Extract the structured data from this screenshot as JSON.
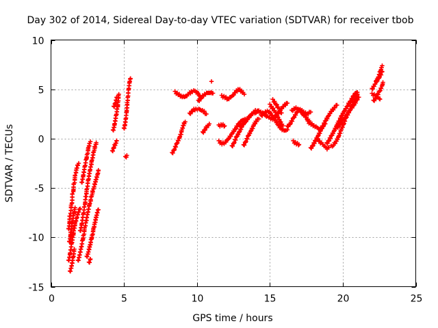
{
  "chart_data": {
    "type": "scatter",
    "title": "Day 302 of 2014, Sidereal Day-to-day VTEC variation (SDTVAR) for receiver tbob",
    "xlabel": "GPS time / hours",
    "ylabel": "SDTVAR / TECUs",
    "xlim": [
      0,
      25
    ],
    "ylim": [
      -15,
      10
    ],
    "xticks": [
      0,
      5,
      10,
      15,
      20,
      25
    ],
    "yticks": [
      -15,
      -10,
      -5,
      0,
      5,
      10
    ],
    "xtick_labels": [
      "0",
      "5",
      "10",
      "15",
      "20",
      "25"
    ],
    "ytick_labels": [
      "-15",
      "-10",
      "-5",
      "0",
      "5",
      "10"
    ],
    "grid": true,
    "marker": "plus",
    "color": "#ff0000",
    "segments": [
      [
        [
          1.2,
          -9.2
        ],
        [
          1.3,
          -7.8
        ],
        [
          1.4,
          -6.6
        ],
        [
          1.5,
          -5.4
        ],
        [
          1.6,
          -4.4
        ],
        [
          1.7,
          -3.5
        ],
        [
          1.8,
          -2.9
        ],
        [
          1.9,
          -2.5
        ]
      ],
      [
        [
          1.25,
          -10.5
        ],
        [
          1.35,
          -9.4
        ],
        [
          1.45,
          -8.4
        ],
        [
          1.55,
          -7.6
        ],
        [
          1.65,
          -7.0
        ]
      ],
      [
        [
          1.2,
          -12.4
        ],
        [
          1.3,
          -11.5
        ],
        [
          1.4,
          -10.6
        ],
        [
          1.5,
          -9.8
        ],
        [
          1.6,
          -9.0
        ],
        [
          1.7,
          -8.4
        ],
        [
          1.8,
          -7.9
        ],
        [
          1.9,
          -7.5
        ],
        [
          2.0,
          -7.1
        ]
      ],
      [
        [
          1.3,
          -13.5
        ],
        [
          1.4,
          -12.8
        ],
        [
          1.5,
          -12.0
        ],
        [
          1.6,
          -11.2
        ]
      ],
      [
        [
          1.85,
          -12.4
        ],
        [
          1.95,
          -11.7
        ],
        [
          2.05,
          -11.0
        ],
        [
          2.15,
          -10.3
        ],
        [
          2.25,
          -9.6
        ],
        [
          2.35,
          -8.9
        ],
        [
          2.45,
          -8.2
        ],
        [
          2.55,
          -7.5
        ],
        [
          2.65,
          -6.8
        ],
        [
          2.75,
          -6.1
        ],
        [
          2.85,
          -5.4
        ],
        [
          2.95,
          -4.8
        ],
        [
          3.05,
          -4.2
        ],
        [
          3.15,
          -3.7
        ],
        [
          3.25,
          -3.2
        ]
      ],
      [
        [
          2.0,
          -9.4
        ],
        [
          2.1,
          -8.5
        ],
        [
          2.2,
          -7.6
        ],
        [
          2.3,
          -6.7
        ],
        [
          2.4,
          -5.8
        ],
        [
          2.5,
          -4.9
        ],
        [
          2.6,
          -4.0
        ],
        [
          2.7,
          -3.2
        ],
        [
          2.8,
          -2.4
        ],
        [
          2.9,
          -1.6
        ],
        [
          3.0,
          -0.9
        ],
        [
          3.1,
          -0.4
        ]
      ],
      [
        [
          2.1,
          -4.5
        ],
        [
          2.2,
          -3.6
        ],
        [
          2.3,
          -2.8
        ],
        [
          2.4,
          -2.1
        ],
        [
          2.5,
          -1.4
        ],
        [
          2.6,
          -0.8
        ],
        [
          2.7,
          -0.3
        ]
      ],
      [
        [
          2.45,
          -12.0
        ],
        [
          2.55,
          -11.4
        ],
        [
          2.65,
          -10.8
        ],
        [
          2.75,
          -10.2
        ],
        [
          2.85,
          -9.6
        ],
        [
          2.95,
          -9.0
        ],
        [
          3.05,
          -8.4
        ],
        [
          3.15,
          -7.8
        ],
        [
          3.25,
          -7.2
        ]
      ],
      [
        [
          2.6,
          -12.6
        ],
        [
          2.7,
          -12.2
        ]
      ],
      [
        [
          4.2,
          -1.3
        ],
        [
          4.3,
          -0.8
        ],
        [
          4.4,
          -0.5
        ],
        [
          4.5,
          -0.2
        ]
      ],
      [
        [
          4.25,
          0.8
        ],
        [
          4.35,
          1.6
        ],
        [
          4.45,
          2.4
        ],
        [
          4.55,
          3.2
        ],
        [
          4.6,
          3.9
        ],
        [
          4.65,
          4.5
        ]
      ],
      [
        [
          4.3,
          3.2
        ],
        [
          4.4,
          3.7
        ],
        [
          4.5,
          4.2
        ]
      ],
      [
        [
          5.0,
          1.0
        ],
        [
          5.05,
          1.5
        ],
        [
          5.1,
          2.0
        ],
        [
          5.15,
          2.6
        ],
        [
          5.2,
          3.2
        ],
        [
          5.25,
          3.8
        ],
        [
          5.3,
          4.4
        ],
        [
          5.35,
          5.0
        ],
        [
          5.4,
          5.6
        ],
        [
          5.45,
          6.1
        ]
      ],
      [
        [
          5.1,
          -1.9
        ],
        [
          5.2,
          -1.7
        ]
      ],
      [
        [
          8.3,
          -1.5
        ],
        [
          8.45,
          -1.0
        ],
        [
          8.6,
          -0.5
        ],
        [
          8.75,
          0.0
        ],
        [
          8.9,
          0.5
        ],
        [
          9.0,
          1.0
        ],
        [
          9.1,
          1.4
        ],
        [
          9.2,
          1.7
        ]
      ],
      [
        [
          8.5,
          4.7
        ],
        [
          8.7,
          4.5
        ],
        [
          8.9,
          4.3
        ],
        [
          9.1,
          4.2
        ],
        [
          9.3,
          4.4
        ],
        [
          9.5,
          4.6
        ],
        [
          9.7,
          4.8
        ],
        [
          9.9,
          4.8
        ],
        [
          10.1,
          4.6
        ],
        [
          10.2,
          4.3
        ]
      ],
      [
        [
          9.5,
          2.5
        ],
        [
          9.7,
          2.9
        ],
        [
          9.9,
          3.0
        ],
        [
          10.1,
          3.0
        ],
        [
          10.3,
          2.9
        ],
        [
          10.5,
          2.7
        ],
        [
          10.65,
          2.5
        ]
      ],
      [
        [
          10.1,
          3.8
        ],
        [
          10.3,
          4.2
        ],
        [
          10.5,
          4.5
        ],
        [
          10.7,
          4.6
        ],
        [
          10.9,
          4.7
        ],
        [
          11.1,
          4.6
        ]
      ],
      [
        [
          11.0,
          5.8
        ]
      ],
      [
        [
          10.4,
          0.6
        ],
        [
          10.55,
          1.0
        ],
        [
          10.7,
          1.3
        ],
        [
          10.85,
          1.5
        ]
      ],
      [
        [
          11.7,
          4.3
        ],
        [
          11.9,
          4.2
        ],
        [
          12.1,
          4.0
        ],
        [
          12.3,
          4.2
        ],
        [
          12.5,
          4.5
        ],
        [
          12.7,
          4.8
        ],
        [
          12.9,
          5.0
        ],
        [
          13.1,
          4.8
        ],
        [
          13.25,
          4.5
        ]
      ],
      [
        [
          11.5,
          1.3
        ],
        [
          11.7,
          1.4
        ],
        [
          11.9,
          1.3
        ]
      ],
      [
        [
          11.5,
          -0.3
        ],
        [
          11.7,
          -0.5
        ],
        [
          11.9,
          -0.4
        ],
        [
          12.1,
          -0.1
        ],
        [
          12.3,
          0.3
        ],
        [
          12.5,
          0.7
        ],
        [
          12.7,
          1.1
        ],
        [
          12.9,
          1.5
        ],
        [
          13.1,
          1.8
        ],
        [
          13.3,
          2.0
        ]
      ],
      [
        [
          12.4,
          -0.8
        ],
        [
          12.55,
          -0.3
        ],
        [
          12.7,
          0.2
        ],
        [
          12.85,
          0.6
        ],
        [
          13.0,
          1.0
        ],
        [
          13.15,
          1.4
        ],
        [
          13.3,
          1.7
        ],
        [
          13.45,
          2.0
        ],
        [
          13.6,
          2.2
        ],
        [
          13.75,
          2.4
        ],
        [
          13.9,
          2.6
        ],
        [
          14.05,
          2.7
        ],
        [
          14.2,
          2.8
        ]
      ],
      [
        [
          13.0,
          1.2
        ],
        [
          13.2,
          1.6
        ],
        [
          13.4,
          1.9
        ],
        [
          13.6,
          2.3
        ],
        [
          13.8,
          2.6
        ],
        [
          14.0,
          2.8
        ],
        [
          14.2,
          2.8
        ],
        [
          14.4,
          2.7
        ],
        [
          14.6,
          2.5
        ],
        [
          14.8,
          2.3
        ],
        [
          15.0,
          2.1
        ],
        [
          15.2,
          2.0
        ],
        [
          15.4,
          2.3
        ],
        [
          15.6,
          2.7
        ],
        [
          15.8,
          3.1
        ],
        [
          16.0,
          3.4
        ],
        [
          16.2,
          3.6
        ]
      ],
      [
        [
          13.2,
          -0.7
        ],
        [
          13.35,
          -0.2
        ],
        [
          13.5,
          0.3
        ],
        [
          13.65,
          0.7
        ],
        [
          13.8,
          1.1
        ],
        [
          13.95,
          1.5
        ],
        [
          14.1,
          1.8
        ],
        [
          14.25,
          2.0
        ]
      ],
      [
        [
          14.4,
          2.3
        ],
        [
          14.6,
          2.6
        ],
        [
          14.8,
          2.8
        ],
        [
          15.0,
          2.6
        ],
        [
          15.2,
          2.2
        ],
        [
          15.4,
          1.8
        ],
        [
          15.6,
          1.4
        ],
        [
          15.8,
          1.0
        ],
        [
          16.0,
          0.8
        ],
        [
          16.2,
          0.9
        ]
      ],
      [
        [
          15.0,
          3.4
        ],
        [
          15.15,
          3.1
        ],
        [
          15.3,
          2.8
        ],
        [
          15.45,
          2.4
        ],
        [
          15.6,
          2.0
        ],
        [
          15.75,
          1.6
        ],
        [
          15.9,
          1.3
        ]
      ],
      [
        [
          15.2,
          3.9
        ],
        [
          15.4,
          3.5
        ],
        [
          15.6,
          3.0
        ],
        [
          15.8,
          2.6
        ]
      ],
      [
        [
          16.2,
          1.2
        ],
        [
          16.4,
          1.6
        ],
        [
          16.6,
          2.1
        ],
        [
          16.8,
          2.6
        ],
        [
          17.0,
          3.0
        ],
        [
          17.2,
          2.8
        ],
        [
          17.4,
          2.6
        ],
        [
          17.6,
          2.5
        ],
        [
          17.8,
          2.7
        ]
      ],
      [
        [
          16.5,
          2.8
        ],
        [
          16.7,
          3.1
        ],
        [
          16.9,
          3.0
        ],
        [
          17.1,
          2.7
        ],
        [
          17.3,
          2.4
        ],
        [
          17.5,
          2.1
        ],
        [
          17.7,
          1.8
        ]
      ],
      [
        [
          16.6,
          -0.3
        ],
        [
          16.8,
          -0.5
        ],
        [
          17.0,
          -0.6
        ]
      ],
      [
        [
          17.6,
          1.7
        ],
        [
          17.8,
          1.5
        ],
        [
          18.0,
          1.3
        ],
        [
          18.2,
          1.1
        ],
        [
          18.4,
          1.0
        ],
        [
          18.6,
          1.2
        ],
        [
          18.8,
          1.5
        ]
      ],
      [
        [
          17.8,
          -1.0
        ],
        [
          17.95,
          -0.6
        ],
        [
          18.1,
          -0.2
        ],
        [
          18.25,
          0.2
        ],
        [
          18.4,
          0.6
        ],
        [
          18.55,
          1.0
        ],
        [
          18.7,
          1.4
        ],
        [
          18.85,
          1.8
        ],
        [
          19.0,
          2.2
        ],
        [
          19.15,
          2.6
        ],
        [
          19.3,
          2.9
        ],
        [
          19.45,
          3.2
        ],
        [
          19.6,
          3.4
        ]
      ],
      [
        [
          18.3,
          -0.1
        ],
        [
          18.45,
          -0.4
        ],
        [
          18.6,
          -0.6
        ],
        [
          18.75,
          -0.8
        ],
        [
          18.9,
          -1.0
        ],
        [
          19.05,
          -0.9
        ]
      ],
      [
        [
          18.9,
          -0.5
        ],
        [
          19.05,
          -0.1
        ],
        [
          19.2,
          0.3
        ],
        [
          19.35,
          0.7
        ],
        [
          19.5,
          1.1
        ],
        [
          19.65,
          1.5
        ],
        [
          19.8,
          1.9
        ],
        [
          19.95,
          2.3
        ],
        [
          20.1,
          2.7
        ],
        [
          20.25,
          3.1
        ],
        [
          20.4,
          3.5
        ],
        [
          20.55,
          3.9
        ],
        [
          20.7,
          4.3
        ],
        [
          20.85,
          4.6
        ],
        [
          21.0,
          4.7
        ]
      ],
      [
        [
          19.2,
          -0.8
        ],
        [
          19.35,
          -0.6
        ],
        [
          19.5,
          -0.3
        ],
        [
          19.65,
          0.1
        ],
        [
          19.8,
          0.6
        ],
        [
          19.95,
          1.1
        ],
        [
          20.1,
          1.6
        ],
        [
          20.25,
          2.1
        ],
        [
          20.4,
          2.6
        ],
        [
          20.55,
          3.1
        ],
        [
          20.7,
          3.6
        ],
        [
          20.85,
          4.1
        ],
        [
          21.0,
          4.5
        ]
      ],
      [
        [
          19.6,
          1.1
        ],
        [
          19.8,
          1.5
        ],
        [
          20.0,
          1.9
        ],
        [
          20.2,
          2.3
        ],
        [
          20.4,
          2.7
        ],
        [
          20.6,
          3.1
        ],
        [
          20.8,
          3.5
        ],
        [
          21.0,
          3.9
        ],
        [
          21.1,
          4.2
        ]
      ],
      [
        [
          22.0,
          4.5
        ],
        [
          22.2,
          4.4
        ],
        [
          22.4,
          4.2
        ],
        [
          22.55,
          4.0
        ]
      ],
      [
        [
          22.0,
          5.0
        ],
        [
          22.2,
          5.6
        ],
        [
          22.4,
          6.2
        ],
        [
          22.55,
          6.8
        ],
        [
          22.7,
          7.4
        ]
      ],
      [
        [
          22.1,
          3.8
        ],
        [
          22.3,
          4.3
        ],
        [
          22.5,
          4.8
        ],
        [
          22.65,
          5.3
        ],
        [
          22.75,
          5.7
        ]
      ],
      [
        [
          22.3,
          5.8
        ],
        [
          22.5,
          6.3
        ],
        [
          22.7,
          6.8
        ]
      ]
    ]
  }
}
